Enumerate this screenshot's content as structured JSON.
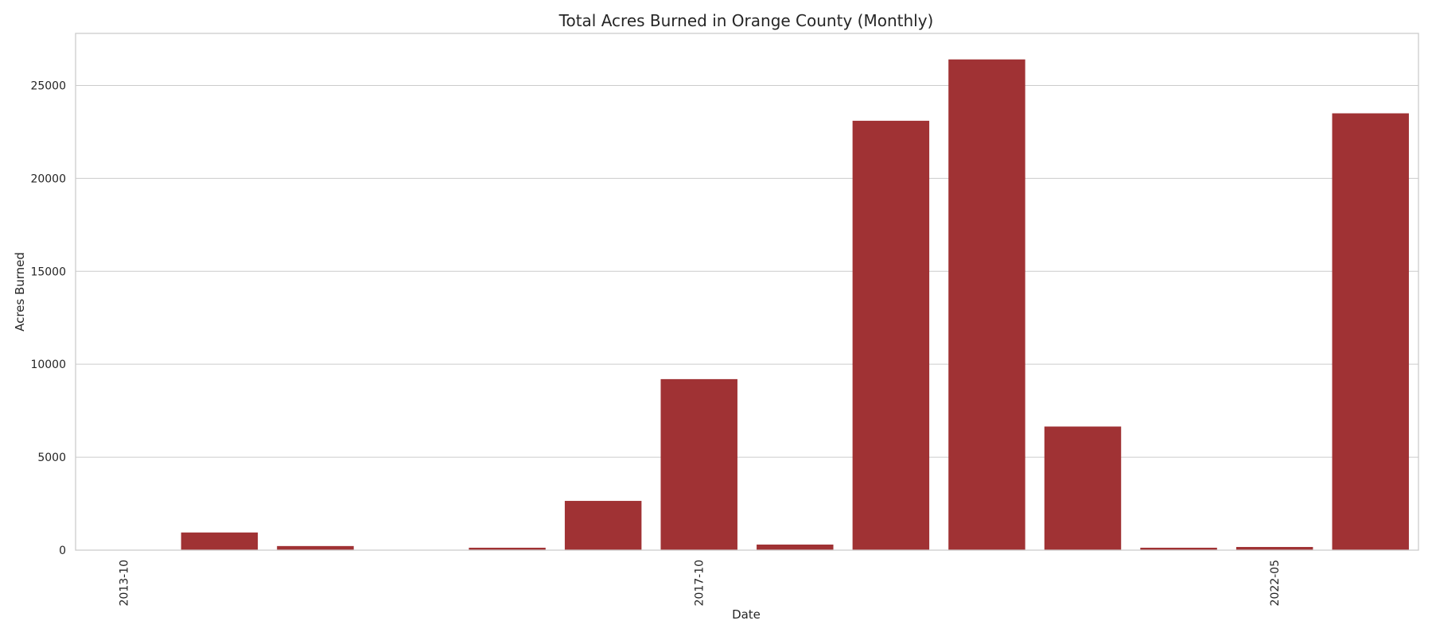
{
  "chart_data": {
    "type": "bar",
    "title": "Total Acres Burned in Orange County (Monthly)",
    "xlabel": "Date",
    "ylabel": "Acres Burned",
    "ylim": [
      0,
      27800
    ],
    "yticks": [
      0,
      5000,
      10000,
      15000,
      20000,
      25000
    ],
    "categories": [
      "2013-10",
      "",
      "",
      "",
      "",
      "",
      "2017-10",
      "",
      "",
      "",
      "",
      "",
      "2022-05",
      ""
    ],
    "values": [
      20,
      950,
      220,
      10,
      130,
      2650,
      9200,
      300,
      23100,
      26400,
      6650,
      130,
      170,
      23500
    ],
    "bar_color": "#a03234",
    "grid": true,
    "legend": "none"
  }
}
